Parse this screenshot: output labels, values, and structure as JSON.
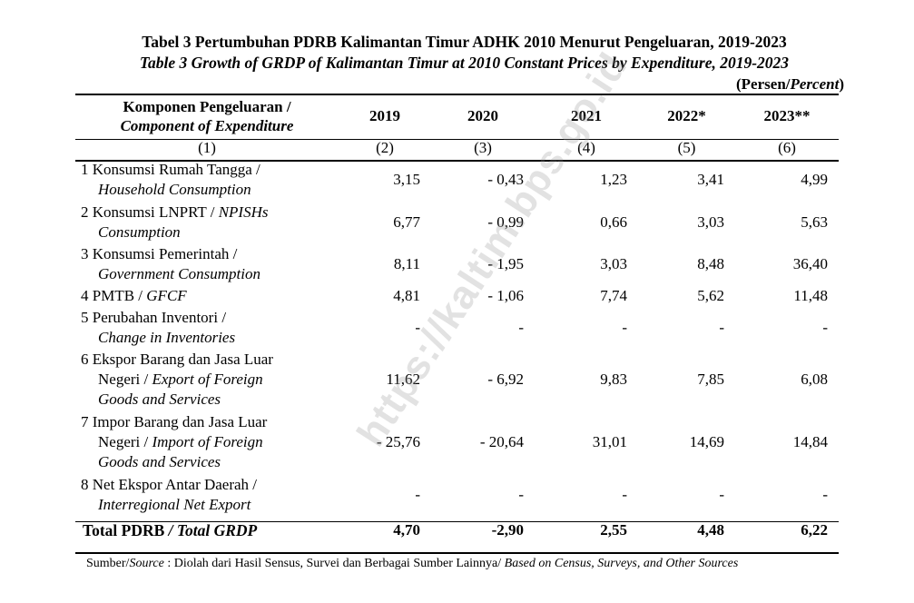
{
  "title_id": "Tabel 3  Pertumbuhan PDRB Kalimantan Timur ADHK 2010 Menurut Pengeluaran, 2019-2023",
  "title_en": "Table 3  Growth of GRDP of Kalimantan Timur at 2010 Constant Prices by Expenditure, 2019-2023",
  "unit_prefix": "(Persen/",
  "unit_italic": "Percent",
  "unit_suffix": ")",
  "header": {
    "component_id": "Komponen Pengeluaran /",
    "component_en": "Component of Expenditure",
    "years": [
      "2019",
      "2020",
      "2021",
      "2022*",
      "2023**"
    ],
    "col_numbers": [
      "(1)",
      "(2)",
      "(3)",
      "(4)",
      "(5)",
      "(6)"
    ]
  },
  "rows": [
    {
      "line1": "1  Konsumsi Rumah Tangga /",
      "line1_it": "",
      "line2": "Household Consumption",
      "line3": "",
      "values": [
        "3,15",
        "- 0,43",
        "1,23",
        "3,41",
        "4,99"
      ]
    },
    {
      "line1": "2  Konsumsi LNPRT / ",
      "line1_it": "NPISHs",
      "line2": "Consumption",
      "line3": "",
      "values": [
        "6,77",
        "- 0,99",
        "0,66",
        "3,03",
        "5,63"
      ]
    },
    {
      "line1": "3  Konsumsi Pemerintah /",
      "line1_it": "",
      "line2": "Government Consumption",
      "line3": "",
      "values": [
        "8,11",
        "- 1,95",
        "3,03",
        "8,48",
        "36,40"
      ]
    },
    {
      "line1": "4  PMTB / ",
      "line1_it": "GFCF",
      "line2": "",
      "line3": "",
      "values": [
        "4,81",
        "- 1,06",
        "7,74",
        "5,62",
        "11,48"
      ]
    },
    {
      "line1": "5  Perubahan Inventori /",
      "line1_it": "",
      "line2": "Change in Inventories",
      "line3": "",
      "values": [
        "-",
        "-",
        "-",
        "-",
        "-"
      ]
    },
    {
      "line1": "6  Ekspor Barang dan Jasa Luar",
      "line1_it": "",
      "line2a": "Negeri / ",
      "line2": "Export of Foreign",
      "line3": "Goods and Services",
      "values": [
        "11,62",
        "- 6,92",
        "9,83",
        "7,85",
        "6,08"
      ]
    },
    {
      "line1": "7  Impor Barang dan Jasa Luar",
      "line1_it": "",
      "line2a": "Negeri / ",
      "line2": "Import of Foreign",
      "line3": "Goods and Services",
      "values": [
        "- 25,76",
        "- 20,64",
        "31,01",
        "14,69",
        "14,84"
      ]
    },
    {
      "line1": "8  Net Ekspor Antar Daerah  /",
      "line1_it": "",
      "line2": "Interregional Net Export",
      "line3": "",
      "values": [
        "-",
        "-",
        "-",
        "-",
        "-"
      ]
    }
  ],
  "total": {
    "label_id": "Total PDRB ",
    "label_en": "/ Total GRDP",
    "values": [
      "4,70",
      "-2,90",
      "2,55",
      "4,48",
      "6,22"
    ]
  },
  "source_prefix": "Sumber/",
  "source_word": "Source",
  "source_text": " : Diolah dari Hasil Sensus, Survei dan Berbagai Sumber Lainnya/ ",
  "source_en": "Based on Census, Surveys, and Other Sources",
  "watermark": "https://kaltim.bps.go.id"
}
